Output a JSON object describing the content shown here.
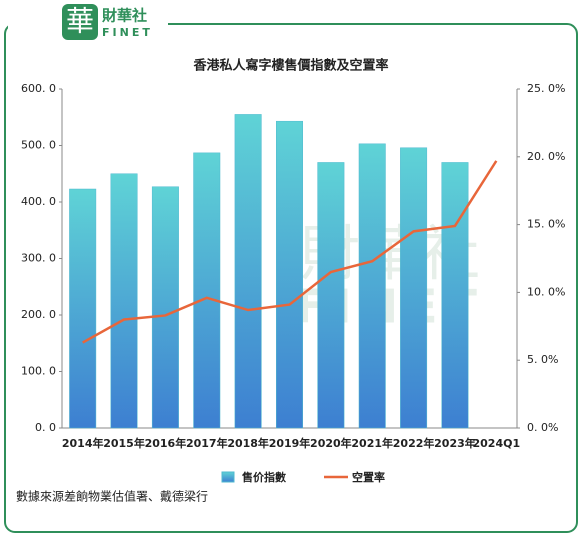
{
  "logo": {
    "mark": "華",
    "name": "財華社",
    "latin": "FINET"
  },
  "watermark": {
    "name": "財華社",
    "latin": "FINET"
  },
  "chart_data": {
    "type": "bar-line",
    "title": "香港私人寫字樓售價指數及空置率",
    "categories": [
      "2014年",
      "2015年",
      "2016年",
      "2017年",
      "2018年",
      "2019年",
      "2020年",
      "2021年",
      "2022年",
      "2023年",
      "2024Q1"
    ],
    "series": [
      {
        "name": "售价指數",
        "type": "bar",
        "color": "#4fc3d6",
        "values": [
          423,
          450,
          427,
          487,
          555,
          543,
          470,
          503,
          496,
          470,
          null
        ]
      },
      {
        "name": "空置率",
        "type": "line",
        "axis": "y2",
        "color": "#e8663a",
        "values": [
          6.3,
          8.0,
          8.3,
          9.6,
          8.7,
          9.1,
          11.5,
          12.3,
          14.5,
          14.9,
          19.7
        ]
      }
    ],
    "ylim": [
      0,
      600
    ],
    "yticks": [
      {
        "value": 0,
        "label": "0. 0"
      },
      {
        "value": 100,
        "label": "100. 0"
      },
      {
        "value": 200,
        "label": "200. 0"
      },
      {
        "value": 300,
        "label": "300. 0"
      },
      {
        "value": 400,
        "label": "400. 0"
      },
      {
        "value": 500,
        "label": "500. 0"
      },
      {
        "value": 600,
        "label": "600. 0"
      }
    ],
    "y2lim": [
      0,
      25
    ],
    "y2ticks": [
      {
        "value": 0,
        "label": "0. 0%"
      },
      {
        "value": 5,
        "label": "5. 0%"
      },
      {
        "value": 10,
        "label": "10. 0%"
      },
      {
        "value": 15,
        "label": "15. 0%"
      },
      {
        "value": 20,
        "label": "20. 0%"
      },
      {
        "value": 25,
        "label": "25. 0%"
      }
    ],
    "source": "數據來源差餉物業估值署、戴德梁行"
  }
}
